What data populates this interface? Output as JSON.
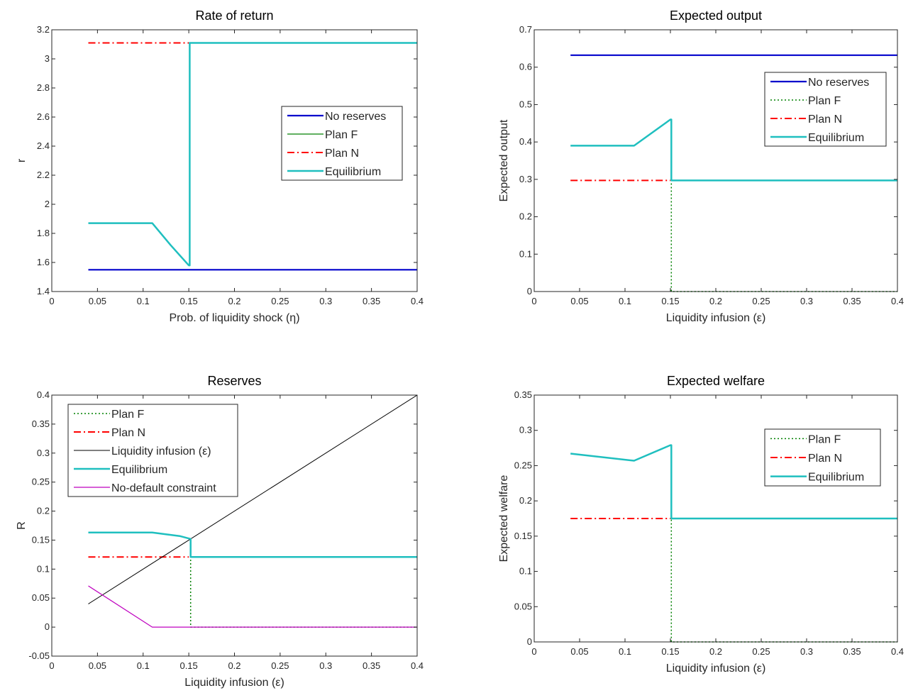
{
  "chart_data": [
    {
      "type": "line",
      "title": "Rate of return",
      "xlabel": "Prob. of liquidity shock (η)",
      "ylabel": "r",
      "xlim": [
        0,
        0.4
      ],
      "ylim": [
        1.4,
        3.2
      ],
      "xticks": [
        0,
        0.05,
        0.1,
        0.15,
        0.2,
        0.25,
        0.3,
        0.35,
        0.4
      ],
      "xtick_labels": [
        "0",
        "0.05",
        "0.1",
        "0.15",
        "0.2",
        "0.25",
        "0.3",
        "0.35",
        "0.4"
      ],
      "yticks": [
        1.4,
        1.6,
        1.8,
        2,
        2.2,
        2.4,
        2.6,
        2.8,
        3,
        3.2
      ],
      "ytick_labels": [
        "1.4",
        "1.6",
        "1.8",
        "2",
        "2.2",
        "2.4",
        "2.6",
        "2.8",
        "3",
        "3.2"
      ],
      "grid": false,
      "legend_position": "right-middle",
      "legend_labels": [
        "No reserves",
        "Plan F",
        "Plan N",
        "Equilibrium"
      ],
      "series": [
        {
          "name": "No reserves",
          "color": "#0000cc",
          "style": "solid",
          "width": 2.2,
          "x": [
            0.04,
            0.4
          ],
          "y": [
            1.55,
            1.55
          ]
        },
        {
          "name": "Plan F",
          "color": "#008000",
          "style": "solid",
          "width": 1.2,
          "x": [
            0.15,
            0.4
          ],
          "y": [
            3.11,
            3.11
          ]
        },
        {
          "name": "Plan N",
          "color": "#ff0000",
          "style": "dashdot",
          "width": 2,
          "x": [
            0.04,
            0.15
          ],
          "y": [
            3.11,
            3.11
          ]
        },
        {
          "name": "Equilibrium",
          "color": "#1fbfbf",
          "style": "solid",
          "width": 2.5,
          "x": [
            0.04,
            0.11,
            0.13,
            0.15,
            0.151,
            0.151,
            0.4
          ],
          "y": [
            1.87,
            1.87,
            1.72,
            1.58,
            1.58,
            3.11,
            3.11
          ]
        }
      ]
    },
    {
      "type": "line",
      "title": "Expected output",
      "xlabel": "Liquidity infusion (ε)",
      "ylabel": "Expected output",
      "xlim": [
        0,
        0.4
      ],
      "ylim": [
        0,
        0.7
      ],
      "xticks": [
        0,
        0.05,
        0.1,
        0.15,
        0.2,
        0.25,
        0.3,
        0.35,
        0.4
      ],
      "xtick_labels": [
        "0",
        "0.05",
        "0.1",
        "0.15",
        "0.2",
        "0.25",
        "0.3",
        "0.35",
        "0.4"
      ],
      "yticks": [
        0,
        0.1,
        0.2,
        0.3,
        0.4,
        0.5,
        0.6,
        0.7
      ],
      "ytick_labels": [
        "0",
        "0.1",
        "0.2",
        "0.3",
        "0.4",
        "0.5",
        "0.6",
        "0.7"
      ],
      "grid": false,
      "legend_position": "top-right",
      "legend_labels": [
        "No reserves",
        "Plan F",
        "Plan N",
        "Equilibrium"
      ],
      "series": [
        {
          "name": "No reserves",
          "color": "#0000cc",
          "style": "solid",
          "width": 2.2,
          "x": [
            0.04,
            0.4
          ],
          "y": [
            0.632,
            0.632
          ]
        },
        {
          "name": "Plan F",
          "color": "#008000",
          "style": "dotted",
          "width": 1.5,
          "x": [
            0.151,
            0.151,
            0.4
          ],
          "y": [
            0.46,
            0.0,
            0.0
          ]
        },
        {
          "name": "Plan N",
          "color": "#ff0000",
          "style": "dashdot",
          "width": 2,
          "x": [
            0.04,
            0.15
          ],
          "y": [
            0.297,
            0.297
          ]
        },
        {
          "name": "Equilibrium",
          "color": "#1fbfbf",
          "style": "solid",
          "width": 2.5,
          "x": [
            0.04,
            0.11,
            0.15,
            0.151,
            0.151,
            0.4
          ],
          "y": [
            0.39,
            0.39,
            0.46,
            0.46,
            0.297,
            0.297
          ]
        }
      ]
    },
    {
      "type": "line",
      "title": "Reserves",
      "xlabel": "Liquidity infusion (ε)",
      "ylabel": "R",
      "xlim": [
        0,
        0.4
      ],
      "ylim": [
        -0.05,
        0.4
      ],
      "xticks": [
        0,
        0.05,
        0.1,
        0.15,
        0.2,
        0.25,
        0.3,
        0.35,
        0.4
      ],
      "xtick_labels": [
        "0",
        "0.05",
        "0.1",
        "0.15",
        "0.2",
        "0.25",
        "0.3",
        "0.35",
        "0.4"
      ],
      "yticks": [
        -0.05,
        0,
        0.05,
        0.1,
        0.15,
        0.2,
        0.25,
        0.3,
        0.35,
        0.4
      ],
      "ytick_labels": [
        "-0.05",
        "0",
        "0.05",
        "0.1",
        "0.15",
        "0.2",
        "0.25",
        "0.3",
        "0.35",
        "0.4"
      ],
      "grid": false,
      "legend_position": "top-left",
      "legend_labels": [
        "Plan F",
        "Plan N",
        "Liquidity infusion (ε)",
        "Equilibrium",
        "No-default constraint"
      ],
      "series": [
        {
          "name": "Plan F",
          "color": "#008000",
          "style": "dotted",
          "width": 1.5,
          "x": [
            0.152,
            0.152,
            0.4
          ],
          "y": [
            0.153,
            0.0,
            0.0
          ]
        },
        {
          "name": "Plan N",
          "color": "#ff0000",
          "style": "dashdot",
          "width": 2,
          "x": [
            0.04,
            0.15
          ],
          "y": [
            0.121,
            0.121
          ]
        },
        {
          "name": "Liquidity infusion (ε)",
          "color": "#000000",
          "style": "solid",
          "width": 1,
          "x": [
            0.04,
            0.4
          ],
          "y": [
            0.04,
            0.4
          ]
        },
        {
          "name": "Equilibrium",
          "color": "#1fbfbf",
          "style": "solid",
          "width": 2.5,
          "x": [
            0.04,
            0.11,
            0.125,
            0.14,
            0.152,
            0.152,
            0.4
          ],
          "y": [
            0.163,
            0.163,
            0.16,
            0.157,
            0.152,
            0.121,
            0.121
          ]
        },
        {
          "name": "No-default constraint",
          "color": "#bf00bf",
          "style": "solid",
          "width": 1.2,
          "x": [
            0.04,
            0.11,
            0.4
          ],
          "y": [
            0.071,
            0.0,
            0.0
          ]
        }
      ]
    },
    {
      "type": "line",
      "title": "Expected welfare",
      "xlabel": "Liquidity infusion (ε)",
      "ylabel": "Expected welfare",
      "xlim": [
        0,
        0.4
      ],
      "ylim": [
        0,
        0.35
      ],
      "xticks": [
        0,
        0.05,
        0.1,
        0.15,
        0.2,
        0.25,
        0.3,
        0.35,
        0.4
      ],
      "xtick_labels": [
        "0",
        "0.05",
        "0.1",
        "0.15",
        "0.2",
        "0.25",
        "0.3",
        "0.35",
        "0.4"
      ],
      "yticks": [
        0,
        0.05,
        0.1,
        0.15,
        0.2,
        0.25,
        0.3,
        0.35
      ],
      "ytick_labels": [
        "0",
        "0.05",
        "0.1",
        "0.15",
        "0.2",
        "0.25",
        "0.3",
        "0.35"
      ],
      "grid": false,
      "legend_position": "top-right",
      "legend_labels": [
        "Plan F",
        "Plan N",
        "Equilibrium"
      ],
      "series": [
        {
          "name": "Plan F",
          "color": "#008000",
          "style": "dotted",
          "width": 1.5,
          "x": [
            0.151,
            0.151,
            0.4
          ],
          "y": [
            0.279,
            0.0,
            0.0
          ]
        },
        {
          "name": "Plan N",
          "color": "#ff0000",
          "style": "dashdot",
          "width": 2,
          "x": [
            0.04,
            0.15
          ],
          "y": [
            0.175,
            0.175
          ]
        },
        {
          "name": "Equilibrium",
          "color": "#1fbfbf",
          "style": "solid",
          "width": 2.5,
          "x": [
            0.04,
            0.11,
            0.15,
            0.151,
            0.151,
            0.4
          ],
          "y": [
            0.267,
            0.257,
            0.279,
            0.279,
            0.175,
            0.175
          ]
        }
      ]
    }
  ]
}
